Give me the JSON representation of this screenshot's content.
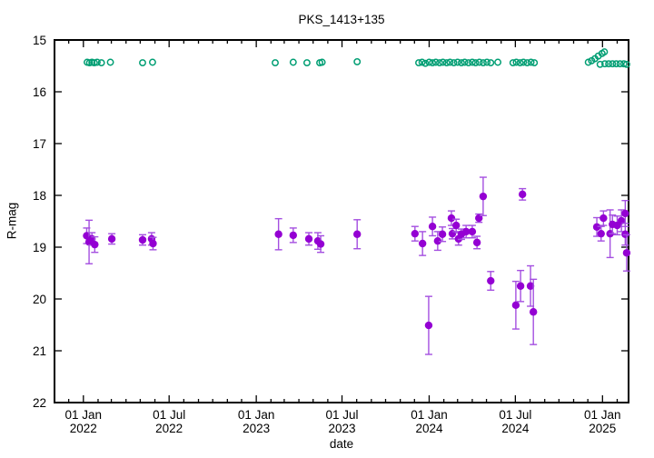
{
  "chart_data": {
    "type": "scatter",
    "title": "PKS_1413+135",
    "xlabel": "date",
    "ylabel": "R-mag",
    "background": "#ffffff",
    "border_color": "#000000",
    "y_axis": {
      "min": 15,
      "max": 22,
      "inverted": true,
      "ticks": [
        {
          "value": 15,
          "label": "15"
        },
        {
          "value": 16,
          "label": "16"
        },
        {
          "value": 17,
          "label": "17"
        },
        {
          "value": 18,
          "label": "18"
        },
        {
          "value": 19,
          "label": "19"
        },
        {
          "value": 20,
          "label": "20"
        },
        {
          "value": 21,
          "label": "21"
        },
        {
          "value": 22,
          "label": "22"
        }
      ]
    },
    "x_axis": {
      "start": "2021-11-01",
      "end": "2025-02-25",
      "minor_tick_unit": "month",
      "major_ticks": [
        {
          "date": "2022-01-01",
          "line1": "01 Jan",
          "line2": "2022"
        },
        {
          "date": "2022-07-01",
          "line1": "01 Jul",
          "line2": "2022"
        },
        {
          "date": "2023-01-01",
          "line1": "01 Jan",
          "line2": "2023"
        },
        {
          "date": "2023-07-01",
          "line1": "01 Jul",
          "line2": "2023"
        },
        {
          "date": "2024-01-01",
          "line1": "01 Jan",
          "line2": "2024"
        },
        {
          "date": "2024-07-01",
          "line1": "01 Jul",
          "line2": "2024"
        },
        {
          "date": "2025-01-01",
          "line1": "01 Jan",
          "line2": "2025"
        }
      ]
    },
    "series": [
      {
        "name": "series-1-purple",
        "marker": "filled-circle",
        "color": "#9400d3",
        "error_bar_color": "#a44fe0",
        "points": [
          [
            "2022-01-08",
            18.78,
            0.15
          ],
          [
            "2022-01-13",
            18.9,
            0.42
          ],
          [
            "2022-01-19",
            18.84,
            0.12
          ],
          [
            "2022-01-25",
            18.95,
            0.15
          ],
          [
            "2022-03-02",
            18.84,
            0.1
          ],
          [
            "2022-05-06",
            18.86,
            0.1
          ],
          [
            "2022-05-25",
            18.84,
            0.12
          ],
          [
            "2022-05-28",
            18.93,
            0.12
          ],
          [
            "2023-02-17",
            18.75,
            0.3
          ],
          [
            "2023-03-20",
            18.77,
            0.14
          ],
          [
            "2023-04-22",
            18.84,
            0.12
          ],
          [
            "2023-05-11",
            18.88,
            0.16
          ],
          [
            "2023-05-17",
            18.94,
            0.16
          ],
          [
            "2023-08-02",
            18.75,
            0.28
          ],
          [
            "2023-12-02",
            18.74,
            0.14
          ],
          [
            "2023-12-18",
            18.93,
            0.23
          ],
          [
            "2023-12-31",
            20.51,
            0.56
          ],
          [
            "2024-01-08",
            18.6,
            0.18
          ],
          [
            "2024-01-19",
            18.88,
            0.18
          ],
          [
            "2024-01-29",
            18.75,
            0.14
          ],
          [
            "2024-02-17",
            18.44,
            0.14
          ],
          [
            "2024-02-19",
            18.74,
            0.1
          ],
          [
            "2024-02-27",
            18.58,
            0.12
          ],
          [
            "2024-03-03",
            18.84,
            0.12
          ],
          [
            "2024-03-09",
            18.75,
            0.1
          ],
          [
            "2024-03-19",
            18.7,
            0.12
          ],
          [
            "2024-04-01",
            18.7,
            0.12
          ],
          [
            "2024-04-11",
            18.91,
            0.12
          ],
          [
            "2024-04-15",
            18.44,
            0.08
          ],
          [
            "2024-04-24",
            18.02,
            0.37
          ],
          [
            "2024-05-10",
            19.65,
            0.18
          ],
          [
            "2024-07-02",
            20.12,
            0.46
          ],
          [
            "2024-07-12",
            19.75,
            0.3
          ],
          [
            "2024-07-16",
            17.98,
            0.11
          ],
          [
            "2024-08-02",
            19.75,
            0.39
          ],
          [
            "2024-08-08",
            20.25,
            0.63
          ],
          [
            "2024-12-20",
            18.61,
            0.18
          ],
          [
            "2024-12-29",
            18.74,
            0.14
          ],
          [
            "2025-01-03",
            18.44,
            0.14
          ],
          [
            "2025-01-17",
            18.74,
            0.46
          ],
          [
            "2025-01-22",
            18.56,
            0.18
          ],
          [
            "2025-02-01",
            18.58,
            0.18
          ],
          [
            "2025-02-10",
            18.49,
            0.21
          ],
          [
            "2025-02-18",
            18.35,
            0.25
          ],
          [
            "2025-02-18",
            18.75,
            0.21
          ],
          [
            "2025-02-21",
            19.11,
            0.35
          ]
        ]
      },
      {
        "name": "series-2-green",
        "marker": "open-circle",
        "color": "#009e73",
        "points": [
          [
            "2022-01-09",
            15.43
          ],
          [
            "2022-01-14",
            15.44
          ],
          [
            "2022-01-19",
            15.43
          ],
          [
            "2022-01-24",
            15.44
          ],
          [
            "2022-01-30",
            15.43
          ],
          [
            "2022-02-08",
            15.44
          ],
          [
            "2022-02-27",
            15.43
          ],
          [
            "2022-05-06",
            15.44
          ],
          [
            "2022-05-27",
            15.43
          ],
          [
            "2023-02-10",
            15.44
          ],
          [
            "2023-03-20",
            15.43
          ],
          [
            "2023-04-18",
            15.44
          ],
          [
            "2023-05-15",
            15.44
          ],
          [
            "2023-05-20",
            15.43
          ],
          [
            "2023-08-02",
            15.42
          ],
          [
            "2023-12-10",
            15.44
          ],
          [
            "2023-12-17",
            15.43
          ],
          [
            "2023-12-24",
            15.45
          ],
          [
            "2024-01-01",
            15.43
          ],
          [
            "2024-01-08",
            15.44
          ],
          [
            "2024-01-15",
            15.43
          ],
          [
            "2024-01-23",
            15.44
          ],
          [
            "2024-01-30",
            15.43
          ],
          [
            "2024-02-07",
            15.44
          ],
          [
            "2024-02-14",
            15.43
          ],
          [
            "2024-02-22",
            15.44
          ],
          [
            "2024-03-01",
            15.43
          ],
          [
            "2024-03-09",
            15.44
          ],
          [
            "2024-03-16",
            15.43
          ],
          [
            "2024-03-24",
            15.44
          ],
          [
            "2024-04-01",
            15.43
          ],
          [
            "2024-04-08",
            15.44
          ],
          [
            "2024-04-16",
            15.43
          ],
          [
            "2024-04-24",
            15.44
          ],
          [
            "2024-05-02",
            15.43
          ],
          [
            "2024-05-10",
            15.44
          ],
          [
            "2024-05-25",
            15.43
          ],
          [
            "2024-06-26",
            15.44
          ],
          [
            "2024-07-03",
            15.43
          ],
          [
            "2024-07-11",
            15.44
          ],
          [
            "2024-07-18",
            15.43
          ],
          [
            "2024-07-26",
            15.44
          ],
          [
            "2024-08-03",
            15.43
          ],
          [
            "2024-08-10",
            15.44
          ],
          [
            "2024-12-02",
            15.43
          ],
          [
            "2024-12-09",
            15.4
          ],
          [
            "2024-12-16",
            15.36
          ],
          [
            "2024-12-23",
            15.31
          ],
          [
            "2024-12-31",
            15.26
          ],
          [
            "2025-01-05",
            15.23
          ],
          [
            "2024-12-27",
            15.47
          ],
          [
            "2025-01-06",
            15.46
          ],
          [
            "2025-01-14",
            15.46
          ],
          [
            "2025-01-22",
            15.46
          ],
          [
            "2025-01-30",
            15.46
          ],
          [
            "2025-02-07",
            15.46
          ],
          [
            "2025-02-15",
            15.46
          ],
          [
            "2025-02-21",
            15.47
          ]
        ]
      }
    ]
  }
}
